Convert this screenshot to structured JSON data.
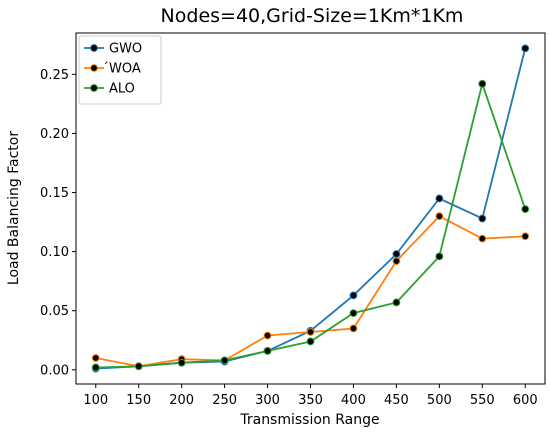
{
  "chart_data": {
    "type": "line",
    "title": "Nodes=40,Grid-Size=1Km*1Km",
    "xlabel": "Transmission Range",
    "ylabel": "Load Balancing Factor",
    "x": [
      100,
      150,
      200,
      250,
      300,
      350,
      400,
      450,
      500,
      550,
      600
    ],
    "x_ticks": [
      "100",
      "150",
      "200",
      "250",
      "300",
      "350",
      "400",
      "450",
      "500",
      "550",
      "600"
    ],
    "y_ticks": [
      "0.00",
      "0.05",
      "0.10",
      "0.15",
      "0.20",
      "0.25"
    ],
    "xlim": [
      77,
      623
    ],
    "ylim": [
      -0.012,
      0.285
    ],
    "grid": false,
    "legend_position": "top-left",
    "marker_color": "#000000",
    "series": [
      {
        "name": "GWO",
        "color": "#1f77b4",
        "values": [
          0.001,
          0.003,
          0.006,
          0.007,
          0.016,
          0.033,
          0.063,
          0.098,
          0.145,
          0.128,
          0.272
        ]
      },
      {
        "name": "́WOA",
        "color": "#ff7f0e",
        "values": [
          0.01,
          0.003,
          0.009,
          0.008,
          0.029,
          0.032,
          0.035,
          0.092,
          0.13,
          0.111,
          0.113
        ]
      },
      {
        "name": "ALO",
        "color": "#2ca02c",
        "values": [
          0.002,
          0.003,
          0.006,
          0.008,
          0.016,
          0.024,
          0.048,
          0.057,
          0.096,
          0.242,
          0.136
        ]
      }
    ]
  }
}
